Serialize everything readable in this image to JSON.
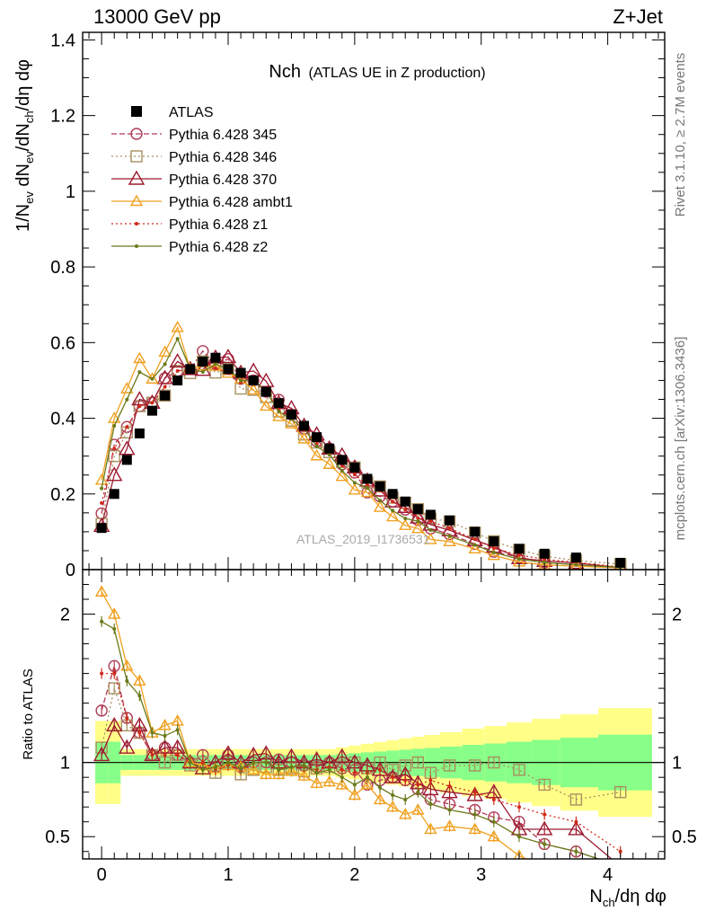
{
  "header": {
    "left": "13000 GeV pp",
    "right": "Z+Jet"
  },
  "side_labels": {
    "rivet": "Rivet 3.1.10, ≥ 2.7M events",
    "mcplots": "mcplots.cern.ch [arXiv:1306.3436]"
  },
  "chart_data": {
    "type": "scatter",
    "title_main": "Nch",
    "title_sub": "(ATLAS UE in Z production)",
    "watermark": "ATLAS_2019_I1736531",
    "xlabel": "N_ch/dη dφ",
    "ylabel": "1/N_ev dN_ev/dN_ch/dη dφ",
    "ratio_ylabel": "Ratio to ATLAS",
    "xlim": [
      -0.15,
      4.45
    ],
    "ylim_main": [
      0,
      1.42
    ],
    "ylim_ratio": [
      0.35,
      2.3
    ],
    "x_ticks": [
      "0",
      "1",
      "2",
      "3",
      "4"
    ],
    "y_ticks_main": [
      "0",
      "0.2",
      "0.4",
      "0.6",
      "0.8",
      "1",
      "1.2",
      "1.4"
    ],
    "y_ticks_ratio": [
      "0.5",
      "1",
      "2"
    ],
    "legend_position": "top-left",
    "x": [
      0.0,
      0.1,
      0.2,
      0.3,
      0.4,
      0.5,
      0.6,
      0.7,
      0.8,
      0.9,
      1.0,
      1.1,
      1.2,
      1.3,
      1.4,
      1.5,
      1.6,
      1.7,
      1.8,
      1.9,
      2.0,
      2.1,
      2.2,
      2.3,
      2.4,
      2.5,
      2.6,
      2.75,
      2.95,
      3.1,
      3.3,
      3.5,
      3.75,
      4.1
    ],
    "data": {
      "name": "ATLAS",
      "values": [
        0.11,
        0.2,
        0.29,
        0.36,
        0.42,
        0.46,
        0.5,
        0.53,
        0.55,
        0.56,
        0.53,
        0.52,
        0.5,
        0.47,
        0.44,
        0.41,
        0.38,
        0.35,
        0.32,
        0.29,
        0.27,
        0.24,
        0.22,
        0.2,
        0.18,
        0.16,
        0.145,
        0.13,
        0.1,
        0.075,
        0.055,
        0.042,
        0.032,
        0.018
      ]
    },
    "series": [
      {
        "name": "Pythia 6.428 345",
        "color": "#b03a55",
        "ratio": [
          1.35,
          1.65,
          1.3,
          1.2,
          1.05,
          1.1,
          1.05,
          1.0,
          1.05,
          0.97,
          1.05,
          0.97,
          1.0,
          1.0,
          1.02,
          1.0,
          0.98,
          0.97,
          1.0,
          0.96,
          0.95,
          0.85,
          0.88,
          0.9,
          0.88,
          0.82,
          0.75,
          0.72,
          0.68,
          0.63,
          0.6,
          0.45,
          0.4,
          0.3
        ]
      },
      {
        "name": "Pythia 6.428 346",
        "color": "#a89060",
        "ratio": [
          1.1,
          1.5,
          1.25,
          1.2,
          1.05,
          1.0,
          1.05,
          0.98,
          1.0,
          0.93,
          1.0,
          0.92,
          0.95,
          0.97,
          0.95,
          0.96,
          0.94,
          0.96,
          0.97,
          0.98,
          1.0,
          0.96,
          1.0,
          0.95,
          0.98,
          1.0,
          0.93,
          0.98,
          0.98,
          1.0,
          0.95,
          0.85,
          0.75,
          0.8
        ]
      },
      {
        "name": "Pythia 6.428 370",
        "color": "#9c1a30",
        "ratio": [
          1.05,
          1.25,
          1.1,
          1.25,
          1.05,
          1.1,
          1.1,
          1.0,
          0.96,
          1.0,
          1.06,
          1.0,
          1.05,
          1.06,
          1.0,
          1.04,
          1.0,
          1.02,
          1.0,
          1.04,
          1.0,
          0.98,
          0.95,
          0.9,
          0.92,
          0.86,
          0.82,
          0.8,
          0.78,
          0.8,
          0.55,
          0.55,
          0.55,
          0.3
        ]
      },
      {
        "name": "Pythia 6.428 ambt1",
        "color": "#f0a020",
        "ratio": [
          2.15,
          2.0,
          1.65,
          1.55,
          1.2,
          1.25,
          1.28,
          1.0,
          0.98,
          0.96,
          0.98,
          0.97,
          0.95,
          0.92,
          0.92,
          0.94,
          0.91,
          0.86,
          0.87,
          0.85,
          0.78,
          0.85,
          0.75,
          0.7,
          0.65,
          0.68,
          0.55,
          0.57,
          0.55,
          0.5,
          0.37,
          0.3,
          0.28,
          0.25
        ]
      },
      {
        "name": "Pythia 6.428 z1",
        "color": "#d02a1a",
        "ratio": [
          1.6,
          1.6,
          1.3,
          1.2,
          1.05,
          1.05,
          1.05,
          1.0,
          1.0,
          0.95,
          0.98,
          0.95,
          1.0,
          1.0,
          0.96,
          0.97,
          0.97,
          0.95,
          0.97,
          0.95,
          0.93,
          0.93,
          0.95,
          0.9,
          0.88,
          0.85,
          0.88,
          0.84,
          0.8,
          0.75,
          0.7,
          0.65,
          0.6,
          0.4
        ]
      },
      {
        "name": "Pythia 6.428 z2",
        "color": "#6b7a1a",
        "ratio": [
          1.95,
          1.9,
          1.55,
          1.45,
          1.2,
          1.18,
          1.22,
          1.0,
          0.95,
          0.97,
          1.0,
          0.96,
          1.0,
          1.0,
          0.95,
          0.97,
          0.98,
          0.93,
          0.95,
          0.9,
          0.85,
          0.9,
          0.83,
          0.78,
          0.75,
          0.8,
          0.72,
          0.68,
          0.65,
          0.6,
          0.5,
          0.45,
          0.4,
          0.3
        ]
      }
    ],
    "uncertainty_bands": {
      "yellow": "#ffff88",
      "green": "#88ff88"
    }
  }
}
